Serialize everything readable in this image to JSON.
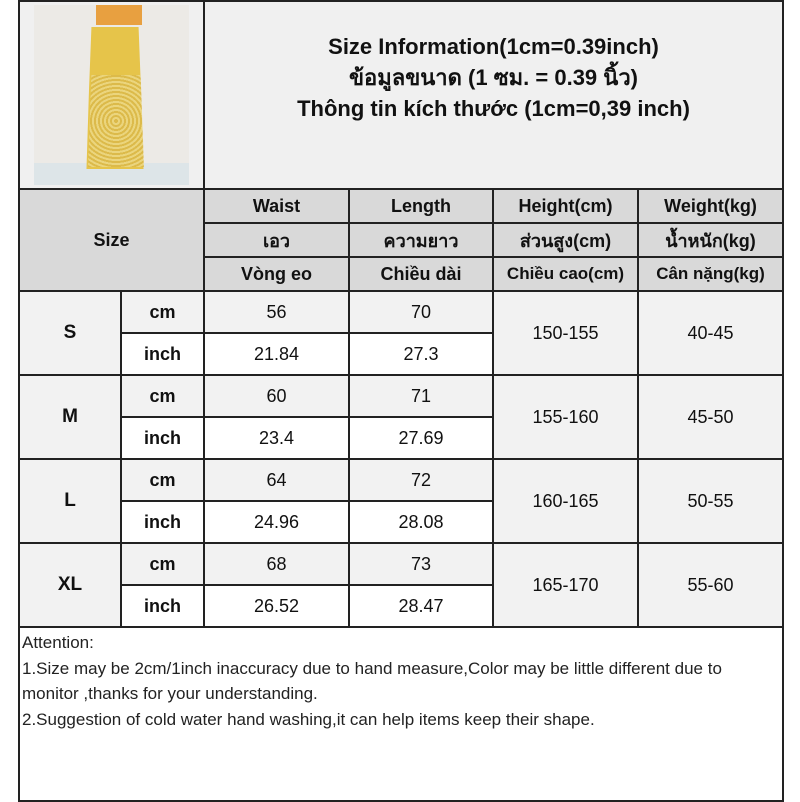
{
  "title": {
    "line_en": "Size Information(1cm=0.39inch)",
    "line_th": "ข้อมูลขนาด (1 ซม. = 0.39 นิ้ว)",
    "line_vi": "Thông tin kích thước (1cm=0,39 inch)"
  },
  "size_label": "Size",
  "columns": [
    {
      "en": "Waist",
      "th": "เอว",
      "vi": "Vòng eo"
    },
    {
      "en": "Length",
      "th": "ความยาว",
      "vi": "Chiều dài"
    },
    {
      "en": "Height(cm)",
      "th": "ส่วนสูง(cm)",
      "vi": "Chiều cao(cm)"
    },
    {
      "en": "Weight(kg)",
      "th": "น้ำหนัก(kg)",
      "vi": "Cân nặng(kg)"
    }
  ],
  "units": {
    "cm": "cm",
    "inch": "inch"
  },
  "rows": [
    {
      "size": "S",
      "cm": {
        "waist": "56",
        "length": "70"
      },
      "inch": {
        "waist": "21.84",
        "length": "27.3"
      },
      "height": "150-155",
      "weight": "40-45"
    },
    {
      "size": "M",
      "cm": {
        "waist": "60",
        "length": "71"
      },
      "inch": {
        "waist": "23.4",
        "length": "27.69"
      },
      "height": "155-160",
      "weight": "45-50"
    },
    {
      "size": "L",
      "cm": {
        "waist": "64",
        "length": "72"
      },
      "inch": {
        "waist": "24.96",
        "length": "28.08"
      },
      "height": "160-165",
      "weight": "50-55"
    },
    {
      "size": "XL",
      "cm": {
        "waist": "68",
        "length": "73"
      },
      "inch": {
        "waist": "26.52",
        "length": "28.47"
      },
      "height": "165-170",
      "weight": "55-60"
    }
  ],
  "notes": {
    "heading": "Attention:",
    "items": [
      "1.Size may be 2cm/1inch inaccuracy due to hand measure,Color may be little different due to monitor ,thanks for your understanding.",
      "2.Suggestion of cold water hand washing,it can help items keep their shape."
    ]
  }
}
